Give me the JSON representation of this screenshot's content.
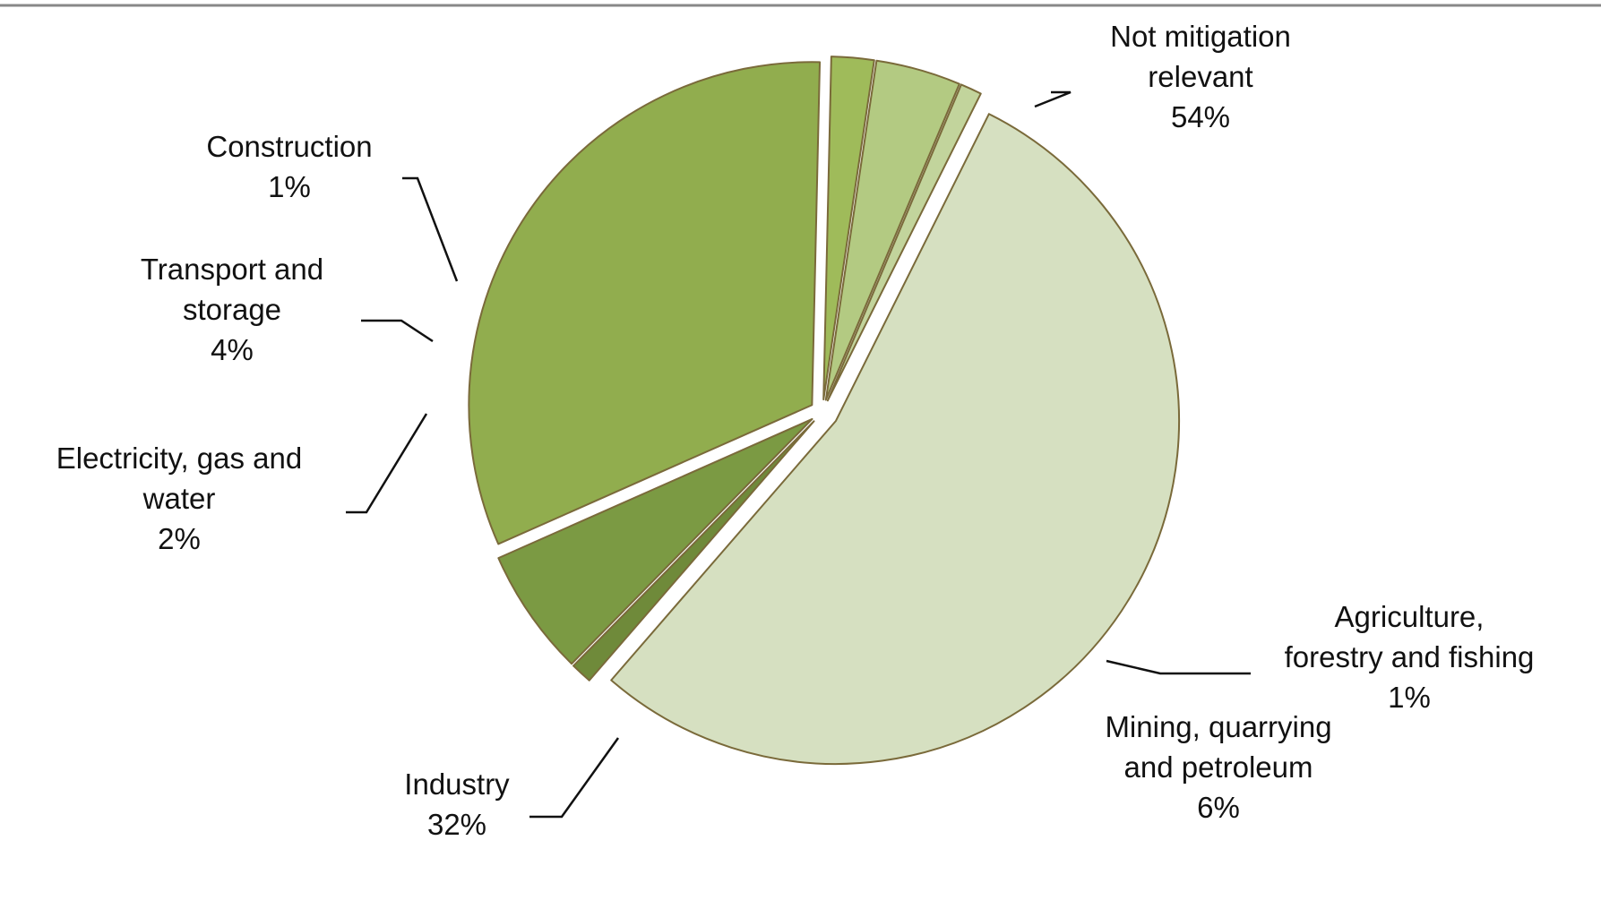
{
  "chart_data": {
    "type": "pie",
    "title": "",
    "start_angle_deg": -63.5,
    "direction": "clockwise",
    "exploded": true,
    "slices": [
      {
        "label_lines": [
          "Not mitigation",
          "relevant",
          "54%"
        ],
        "label": "Not mitigation relevant",
        "value": 54,
        "value_label": "54%",
        "color": "#d6e0c1"
      },
      {
        "label_lines": [
          "Agriculture,",
          "forestry and fishing",
          "1%"
        ],
        "label": "Agriculture, forestry and fishing",
        "value": 1,
        "value_label": "1%",
        "color": "#6f8a3a"
      },
      {
        "label_lines": [
          "Mining, quarrying",
          "and petroleum",
          "6%"
        ],
        "label": "Mining, quarrying and petroleum",
        "value": 6,
        "value_label": "6%",
        "color": "#7b9a43"
      },
      {
        "label_lines": [
          "Industry",
          "32%"
        ],
        "label": "Industry",
        "value": 32,
        "value_label": "32%",
        "color": "#91ad4e"
      },
      {
        "label_lines": [
          "Electricity, gas and",
          "water",
          "2%"
        ],
        "label": "Electricity, gas and water",
        "value": 2,
        "value_label": "2%",
        "color": "#9fbb5a"
      },
      {
        "label_lines": [
          "Transport and",
          "storage",
          "4%"
        ],
        "label": "Transport and storage",
        "value": 4,
        "value_label": "4%",
        "color": "#b3ca82"
      },
      {
        "label_lines": [
          "Construction",
          "1%"
        ],
        "label": "Construction",
        "value": 1,
        "value_label": "1%",
        "color": "#c2d49c"
      }
    ],
    "legend": "none",
    "colors": {
      "outline": "#7a6a3a",
      "top_rule": "#888888",
      "leader": "#111111"
    }
  }
}
